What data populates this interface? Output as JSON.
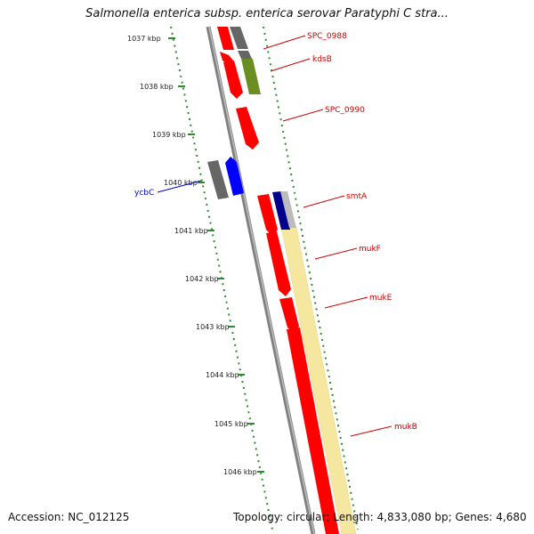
{
  "title": "Salmonella enterica subsp. enterica serovar Paratyphi C stra...",
  "footer": {
    "accession": "Accession: NC_012125",
    "summary": "Topology: circular; Length: 4,833,080 bp; Genes: 4,680"
  },
  "ticks": [
    "1037 kbp",
    "1038 kbp",
    "1039 kbp",
    "1040 kbp",
    "1041 kbp",
    "1042 kbp",
    "1043 kbp",
    "1044 kbp",
    "1045 kbp",
    "1046 kbp"
  ],
  "genes": [
    {
      "name": "SPC_0988",
      "color": "#cc0000"
    },
    {
      "name": "kdsB",
      "color": "#cc0000"
    },
    {
      "name": "SPC_0990",
      "color": "#cc0000"
    },
    {
      "name": "ycbC",
      "color": "#0000cc"
    },
    {
      "name": "smtA",
      "color": "#cc0000"
    },
    {
      "name": "mukF",
      "color": "#cc0000"
    },
    {
      "name": "mukE",
      "color": "#cc0000"
    },
    {
      "name": "mukB",
      "color": "#cc0000"
    }
  ],
  "colors": {
    "backbone": "#808080",
    "gene_red": "#ff0000",
    "gene_gray": "#666666",
    "gene_blue": "#0000ff",
    "gene_olive": "#6b8e23",
    "gene_navy": "#00008b",
    "cog_band": "#f5e6a0",
    "dotted": "#2e8b2e"
  }
}
